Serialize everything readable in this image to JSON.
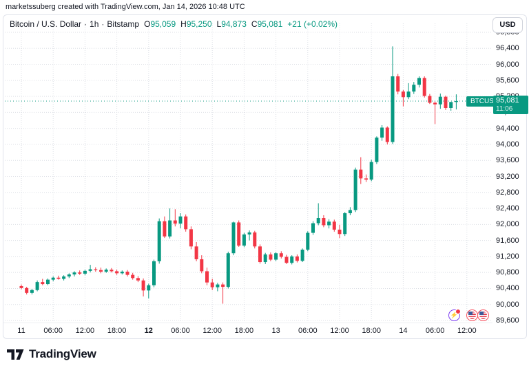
{
  "attribution": "marketssuberg created with TradingView.com, Jan 14, 2026 10:48 UTC",
  "legend": {
    "symbol": "Bitcoin / U.S. Dollar",
    "separator": "·",
    "interval": "1h",
    "exchange": "Bitstamp",
    "ohlc": [
      {
        "k": "O",
        "v": "95,059"
      },
      {
        "k": "H",
        "v": "95,250"
      },
      {
        "k": "L",
        "v": "94,873"
      },
      {
        "k": "C",
        "v": "95,081"
      }
    ],
    "change": "+21 (+0.02%)"
  },
  "axis": {
    "currency": "USD",
    "price_ticks": [
      {
        "label": "96,800",
        "value": 96800
      },
      {
        "label": "96,400",
        "value": 96400
      },
      {
        "label": "96,000",
        "value": 96000
      },
      {
        "label": "95,600",
        "value": 95600
      },
      {
        "label": "95,200",
        "value": 95200
      },
      {
        "label": "94,800",
        "value": 94800
      },
      {
        "label": "94,400",
        "value": 94400
      },
      {
        "label": "94,000",
        "value": 94000
      },
      {
        "label": "93,600",
        "value": 93600
      },
      {
        "label": "93,200",
        "value": 93200
      },
      {
        "label": "92,800",
        "value": 92800
      },
      {
        "label": "92,400",
        "value": 92400
      },
      {
        "label": "92,000",
        "value": 92000
      },
      {
        "label": "91,600",
        "value": 91600
      },
      {
        "label": "91,200",
        "value": 91200
      },
      {
        "label": "90,800",
        "value": 90800
      },
      {
        "label": "90,400",
        "value": 90400
      },
      {
        "label": "90,000",
        "value": 90000
      },
      {
        "label": "89,600",
        "value": 89600
      }
    ],
    "time_ticks": [
      {
        "label": "11",
        "h": 0,
        "bold": false
      },
      {
        "label": "06:00",
        "h": 6,
        "bold": false
      },
      {
        "label": "12:00",
        "h": 12,
        "bold": false
      },
      {
        "label": "18:00",
        "h": 18,
        "bold": false
      },
      {
        "label": "12",
        "h": 24,
        "bold": true
      },
      {
        "label": "06:00",
        "h": 30,
        "bold": false
      },
      {
        "label": "12:00",
        "h": 36,
        "bold": false
      },
      {
        "label": "18:00",
        "h": 42,
        "bold": false
      },
      {
        "label": "13",
        "h": 48,
        "bold": false
      },
      {
        "label": "06:00",
        "h": 54,
        "bold": false
      },
      {
        "label": "12:00",
        "h": 60,
        "bold": false
      },
      {
        "label": "18:00",
        "h": 66,
        "bold": false
      },
      {
        "label": "14",
        "h": 72,
        "bold": false
      },
      {
        "label": "06:00",
        "h": 78,
        "bold": false
      },
      {
        "label": "12:00",
        "h": 84,
        "bold": false
      }
    ]
  },
  "price_label": {
    "symbol": "BTCUSD",
    "price": "95,081",
    "countdown": "11:06"
  },
  "events": [
    {
      "type": "lightning-event",
      "x": 646,
      "glyph": "⚡"
    },
    {
      "type": "us-economic-event",
      "x": 672
    },
    {
      "type": "us-economic-event",
      "x": 688
    }
  ],
  "footer": {
    "brand": "TradingView"
  },
  "colors": {
    "up": "#089981",
    "down": "#F23645",
    "accent": "#089981",
    "grid": "#dcdfe5",
    "axis_text": "#131722",
    "badge_bg": "#089981",
    "event_purple": "#7e3ff2",
    "event_red": "#f7525f"
  },
  "chart_data": {
    "type": "candlestick",
    "title": "Bitcoin / U.S. Dollar",
    "symbol": "BTCUSD",
    "exchange": "Bitstamp",
    "interval": "1h",
    "start": "Jan 11, 2026 00:00 UTC",
    "end": "Jan 14, 2026 10:00 UTC (current bar)",
    "current_price": 95081,
    "current_bar": {
      "open": 95059,
      "high": 95250,
      "low": 94873,
      "close": 95081,
      "change": 21,
      "change_pct": 0.02
    },
    "ylim": [
      89600,
      96800
    ],
    "grid": true,
    "ohlc_format": "[open, high, low, close], one bar per hour starting Jan 11 00:00 UTC",
    "candles": [
      [
        90460,
        90500,
        90380,
        90410
      ],
      [
        90410,
        90440,
        90250,
        90290
      ],
      [
        90290,
        90390,
        90250,
        90360
      ],
      [
        90360,
        90600,
        90330,
        90560
      ],
      [
        90560,
        90640,
        90480,
        90510
      ],
      [
        90510,
        90650,
        90480,
        90620
      ],
      [
        90620,
        90700,
        90580,
        90670
      ],
      [
        90670,
        90720,
        90620,
        90640
      ],
      [
        90640,
        90730,
        90600,
        90700
      ],
      [
        90700,
        90780,
        90660,
        90750
      ],
      [
        90750,
        90830,
        90700,
        90800
      ],
      [
        90800,
        90850,
        90740,
        90770
      ],
      [
        90770,
        90870,
        90730,
        90840
      ],
      [
        90840,
        90990,
        90800,
        90880
      ],
      [
        90880,
        90930,
        90820,
        90860
      ],
      [
        90860,
        90920,
        90780,
        90820
      ],
      [
        90820,
        90900,
        90790,
        90870
      ],
      [
        90870,
        90910,
        90800,
        90830
      ],
      [
        90830,
        90870,
        90740,
        90780
      ],
      [
        90780,
        90850,
        90750,
        90820
      ],
      [
        90820,
        90860,
        90700,
        90740
      ],
      [
        90740,
        90790,
        90620,
        90660
      ],
      [
        90660,
        90710,
        90560,
        90600
      ],
      [
        90600,
        90650,
        90200,
        90350
      ],
      [
        90350,
        90520,
        90150,
        90480
      ],
      [
        90480,
        91120,
        90430,
        91080
      ],
      [
        91080,
        92150,
        91020,
        92080
      ],
      [
        92080,
        92200,
        91660,
        91700
      ],
      [
        91700,
        92400,
        91650,
        92100
      ],
      [
        92100,
        92380,
        91950,
        92020
      ],
      [
        92020,
        92280,
        91900,
        92200
      ],
      [
        92200,
        92250,
        91820,
        91880
      ],
      [
        91880,
        91950,
        91380,
        91450
      ],
      [
        91450,
        91560,
        91080,
        91130
      ],
      [
        91130,
        91230,
        90780,
        90830
      ],
      [
        90830,
        90920,
        90480,
        90550
      ],
      [
        90550,
        90640,
        90360,
        90430
      ],
      [
        90430,
        90540,
        90330,
        90500
      ],
      [
        90500,
        90550,
        90020,
        90440
      ],
      [
        90440,
        91320,
        90400,
        91280
      ],
      [
        91280,
        92070,
        91230,
        92050
      ],
      [
        92050,
        92100,
        91440,
        91470
      ],
      [
        91470,
        91790,
        91430,
        91750
      ],
      [
        91750,
        91850,
        91600,
        91800
      ],
      [
        91800,
        91840,
        91400,
        91450
      ],
      [
        91450,
        91500,
        91020,
        91060
      ],
      [
        91060,
        91290,
        91010,
        91250
      ],
      [
        91250,
        91300,
        91080,
        91120
      ],
      [
        91120,
        91310,
        91080,
        91280
      ],
      [
        91280,
        91330,
        91150,
        91190
      ],
      [
        91190,
        91240,
        91010,
        91040
      ],
      [
        91040,
        91230,
        91000,
        91200
      ],
      [
        91200,
        91250,
        91050,
        91090
      ],
      [
        91090,
        91400,
        91060,
        91370
      ],
      [
        91370,
        91830,
        91330,
        91790
      ],
      [
        91790,
        92080,
        91740,
        92030
      ],
      [
        92030,
        92530,
        91980,
        92160
      ],
      [
        92160,
        92230,
        91930,
        91980
      ],
      [
        91980,
        92130,
        91900,
        92070
      ],
      [
        92070,
        92120,
        91820,
        91870
      ],
      [
        91870,
        91990,
        91660,
        91760
      ],
      [
        91760,
        92310,
        91710,
        92280
      ],
      [
        92280,
        92430,
        92230,
        92360
      ],
      [
        92360,
        93420,
        92310,
        93370
      ],
      [
        93370,
        93680,
        93010,
        93150
      ],
      [
        93150,
        93250,
        93060,
        93120
      ],
      [
        93120,
        93620,
        93080,
        93560
      ],
      [
        93560,
        94200,
        93510,
        94170
      ],
      [
        94170,
        94480,
        94090,
        94420
      ],
      [
        94420,
        94450,
        94000,
        94060
      ],
      [
        94060,
        96450,
        94010,
        95700
      ],
      [
        95700,
        95760,
        95250,
        95320
      ],
      [
        95320,
        95360,
        94950,
        95180
      ],
      [
        95180,
        95530,
        95130,
        95320
      ],
      [
        95320,
        95560,
        95260,
        95490
      ],
      [
        95490,
        95700,
        95420,
        95660
      ],
      [
        95660,
        95700,
        95170,
        95210
      ],
      [
        95210,
        95260,
        95010,
        95040
      ],
      [
        95040,
        95070,
        94510,
        95000
      ],
      [
        95000,
        95270,
        94890,
        95190
      ],
      [
        95190,
        95220,
        94860,
        94910
      ],
      [
        94910,
        95060,
        94840,
        95059
      ],
      [
        95059,
        95250,
        94873,
        95081
      ]
    ]
  }
}
